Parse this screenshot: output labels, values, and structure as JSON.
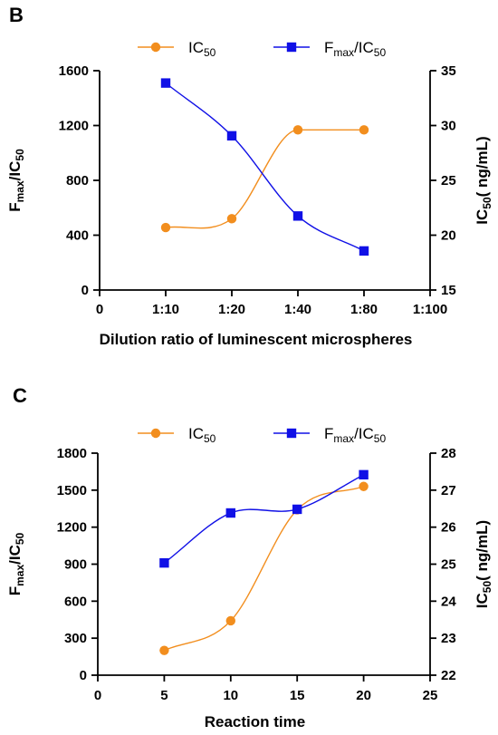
{
  "chart_data": [
    {
      "type": "line",
      "panel_label": "B",
      "xlabel": "Dilution ratio of luminescent microspheres",
      "x_tick_labels": [
        "0",
        "1:10",
        "1:20",
        "1:40",
        "1:80",
        "1:100"
      ],
      "categories": [
        "1:10",
        "1:20",
        "1:40",
        "1:80"
      ],
      "y_left": {
        "label_main": "F",
        "label_sub": "max",
        "label_rest": "/IC",
        "label_sub2": "50",
        "ylim": [
          0,
          1600
        ],
        "ticks": [
          0,
          400,
          800,
          1200,
          1600
        ]
      },
      "y_right": {
        "label_main": "IC",
        "label_sub": "50",
        "label_rest": "( ng/mL)",
        "ylim": [
          15,
          35
        ],
        "ticks": [
          15,
          20,
          25,
          30,
          35
        ]
      },
      "series": [
        {
          "name_main": "IC",
          "name_sub": "50",
          "axis": "right",
          "color": "#f28e1e",
          "marker": "circle",
          "x": [
            1,
            2,
            3,
            4
          ],
          "values": [
            20.7,
            21.5,
            29.6,
            29.6
          ]
        },
        {
          "name_main": "F",
          "name_sub": "max",
          "name_rest": "/IC",
          "name_sub2": "50",
          "axis": "left",
          "color": "#1010e6",
          "marker": "square",
          "x": [
            1,
            2,
            3,
            4
          ],
          "values": [
            1510,
            1125,
            540,
            285
          ]
        }
      ],
      "legend": "top",
      "grid": false
    },
    {
      "type": "line",
      "panel_label": "C",
      "xlabel": "Reaction time",
      "x_tick_labels": [
        "0",
        "5",
        "10",
        "15",
        "20",
        "25"
      ],
      "xlim": [
        0,
        25
      ],
      "y_left": {
        "label_main": "F",
        "label_sub": "max",
        "label_rest": "/IC",
        "label_sub2": "50",
        "ylim": [
          0,
          1800
        ],
        "ticks": [
          0,
          300,
          600,
          900,
          1200,
          1500,
          1800
        ]
      },
      "y_right": {
        "label_main": "IC",
        "label_sub": "50",
        "label_rest": "( ng/mL)",
        "ylim": [
          22,
          28
        ],
        "ticks": [
          22,
          23,
          24,
          25,
          26,
          27,
          28
        ]
      },
      "series": [
        {
          "name_main": "IC",
          "name_sub": "50",
          "axis": "right",
          "color": "#f28e1e",
          "marker": "circle",
          "x": [
            5,
            10,
            15,
            20
          ],
          "values": [
            22.67,
            23.47,
            26.47,
            27.1
          ]
        },
        {
          "name_main": "F",
          "name_sub": "max",
          "name_rest": "/IC",
          "name_sub2": "50",
          "axis": "left",
          "color": "#1010e6",
          "marker": "square",
          "x": [
            5,
            10,
            15,
            20
          ],
          "values": [
            910,
            1315,
            1345,
            1625
          ]
        }
      ],
      "legend": "top",
      "grid": false
    }
  ]
}
